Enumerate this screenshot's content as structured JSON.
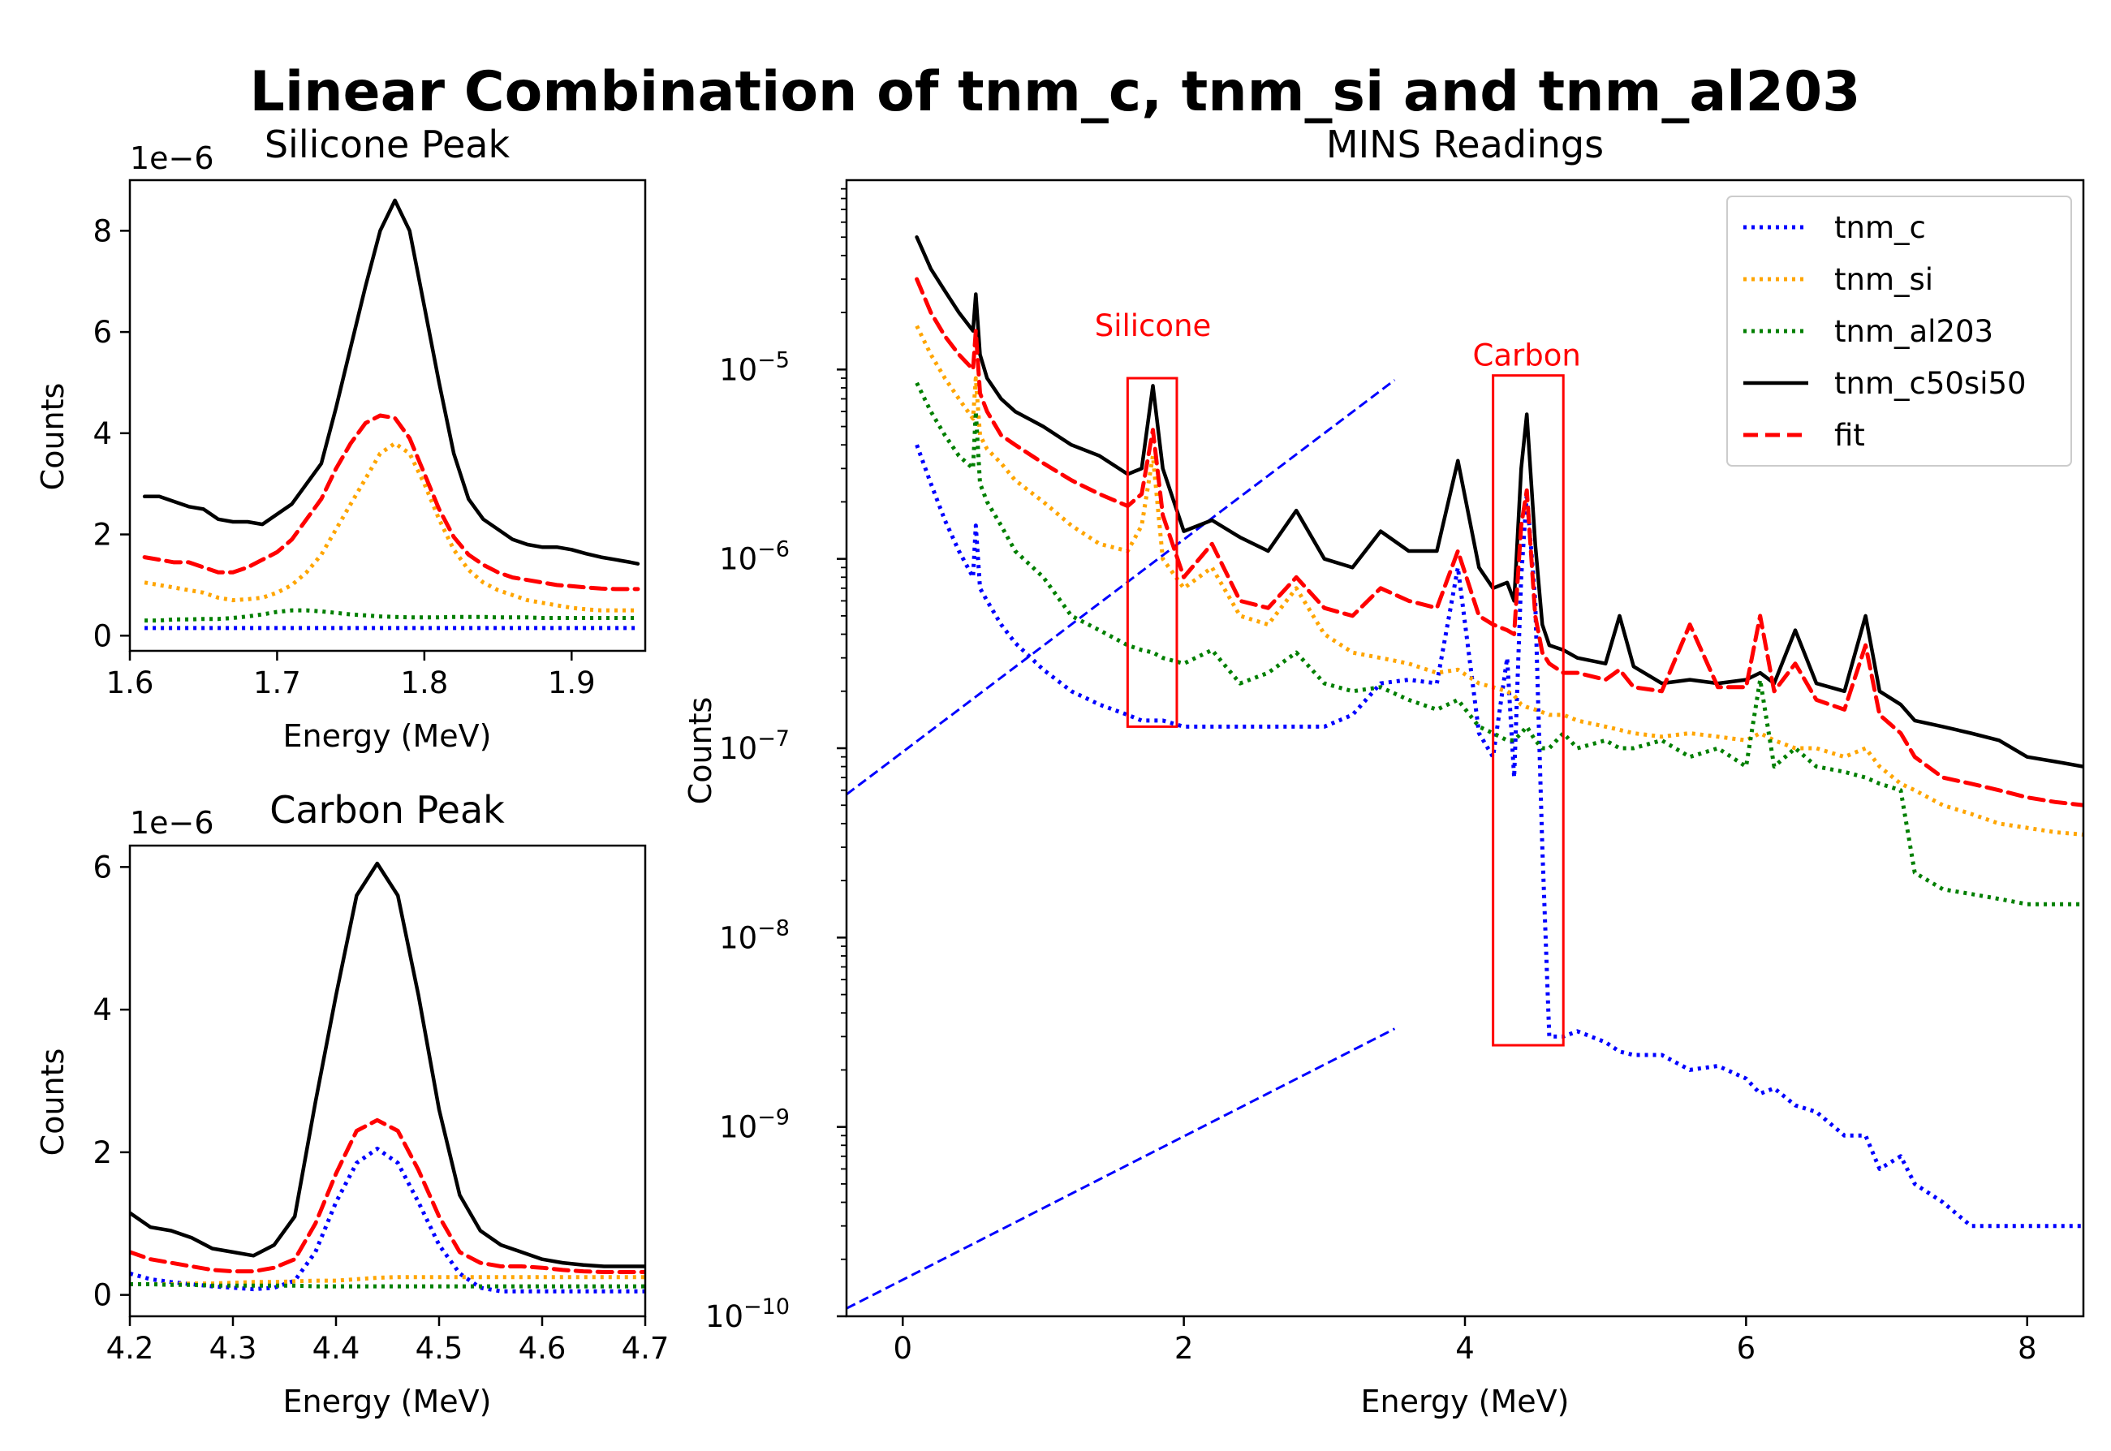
{
  "title": "Linear Combination of tnm_c, tnm_si and tnm_al203",
  "colors": {
    "tnm_c": "#0000ff",
    "tnm_si": "#ffa500",
    "tnm_al203": "#007f00",
    "tnm_c50si50": "#000000",
    "fit": "#ff0000",
    "annotation": "#ff0000",
    "guide": "#0000ff"
  },
  "chart_data": [
    {
      "id": "silicone",
      "type": "line",
      "title": "Silicone Peak",
      "xlabel": "Energy (MeV)",
      "ylabel": "Counts",
      "offset_label": "1e−6",
      "xlim": [
        1.6,
        1.95
      ],
      "ylim": [
        -0.3,
        9.0
      ],
      "xticks": [
        1.6,
        1.7,
        1.8,
        1.9
      ],
      "xtick_labels": [
        "1.6",
        "1.7",
        "1.8",
        "1.9"
      ],
      "yticks": [
        0,
        2,
        4,
        6,
        8
      ],
      "ytick_labels": [
        "0",
        "2",
        "4",
        "6",
        "8"
      ],
      "x": [
        1.61,
        1.62,
        1.63,
        1.64,
        1.65,
        1.66,
        1.67,
        1.68,
        1.69,
        1.7,
        1.71,
        1.72,
        1.73,
        1.74,
        1.75,
        1.76,
        1.77,
        1.78,
        1.79,
        1.8,
        1.81,
        1.82,
        1.83,
        1.84,
        1.85,
        1.86,
        1.87,
        1.88,
        1.89,
        1.9,
        1.91,
        1.92,
        1.93,
        1.94,
        1.945
      ],
      "series": [
        {
          "name": "tnm_c",
          "style": "dotted",
          "values": [
            0.15,
            0.15,
            0.15,
            0.15,
            0.15,
            0.15,
            0.15,
            0.15,
            0.15,
            0.15,
            0.15,
            0.15,
            0.15,
            0.15,
            0.15,
            0.15,
            0.15,
            0.15,
            0.15,
            0.15,
            0.15,
            0.15,
            0.15,
            0.15,
            0.15,
            0.15,
            0.15,
            0.15,
            0.15,
            0.15,
            0.15,
            0.15,
            0.15,
            0.15,
            0.15
          ]
        },
        {
          "name": "tnm_si",
          "style": "dotted",
          "values": [
            1.05,
            1.0,
            0.95,
            0.9,
            0.85,
            0.75,
            0.7,
            0.72,
            0.75,
            0.85,
            1.0,
            1.25,
            1.6,
            2.1,
            2.6,
            3.1,
            3.6,
            3.8,
            3.6,
            3.0,
            2.3,
            1.7,
            1.3,
            1.05,
            0.9,
            0.8,
            0.7,
            0.65,
            0.6,
            0.55,
            0.52,
            0.5,
            0.5,
            0.5,
            0.5
          ]
        },
        {
          "name": "tnm_al203",
          "style": "dotted",
          "values": [
            0.3,
            0.3,
            0.32,
            0.32,
            0.33,
            0.33,
            0.35,
            0.38,
            0.42,
            0.47,
            0.5,
            0.5,
            0.48,
            0.45,
            0.42,
            0.4,
            0.38,
            0.37,
            0.36,
            0.36,
            0.36,
            0.37,
            0.37,
            0.37,
            0.36,
            0.36,
            0.36,
            0.35,
            0.35,
            0.35,
            0.35,
            0.35,
            0.35,
            0.35,
            0.35
          ]
        },
        {
          "name": "tnm_c50si50",
          "style": "solid",
          "values": [
            2.75,
            2.75,
            2.65,
            2.55,
            2.5,
            2.3,
            2.25,
            2.25,
            2.2,
            2.4,
            2.6,
            3.0,
            3.4,
            4.5,
            5.7,
            6.9,
            8.0,
            8.6,
            8.0,
            6.5,
            5.0,
            3.6,
            2.7,
            2.3,
            2.1,
            1.9,
            1.8,
            1.75,
            1.75,
            1.7,
            1.62,
            1.55,
            1.5,
            1.45,
            1.42
          ]
        },
        {
          "name": "fit",
          "style": "dashed",
          "values": [
            1.55,
            1.5,
            1.45,
            1.45,
            1.35,
            1.25,
            1.25,
            1.35,
            1.5,
            1.65,
            1.9,
            2.3,
            2.7,
            3.3,
            3.8,
            4.2,
            4.35,
            4.3,
            3.9,
            3.2,
            2.5,
            1.95,
            1.6,
            1.4,
            1.25,
            1.15,
            1.1,
            1.05,
            1.0,
            0.98,
            0.95,
            0.93,
            0.92,
            0.92,
            0.92
          ]
        }
      ]
    },
    {
      "id": "carbon",
      "type": "line",
      "title": "Carbon Peak",
      "xlabel": "Energy (MeV)",
      "ylabel": "Counts",
      "offset_label": "1e−6",
      "xlim": [
        4.2,
        4.7
      ],
      "ylim": [
        -0.3,
        6.3
      ],
      "xticks": [
        4.2,
        4.3,
        4.4,
        4.5,
        4.6,
        4.7
      ],
      "xtick_labels": [
        "4.2",
        "4.3",
        "4.4",
        "4.5",
        "4.6",
        "4.7"
      ],
      "yticks": [
        0,
        2,
        4,
        6
      ],
      "ytick_labels": [
        "0",
        "2",
        "4",
        "6"
      ],
      "x": [
        4.2,
        4.22,
        4.24,
        4.26,
        4.28,
        4.3,
        4.32,
        4.34,
        4.36,
        4.38,
        4.4,
        4.42,
        4.44,
        4.46,
        4.48,
        4.5,
        4.52,
        4.54,
        4.56,
        4.58,
        4.6,
        4.62,
        4.64,
        4.66,
        4.68,
        4.7
      ],
      "series": [
        {
          "name": "tnm_c",
          "style": "dotted",
          "values": [
            0.3,
            0.22,
            0.18,
            0.15,
            0.12,
            0.1,
            0.08,
            0.1,
            0.2,
            0.6,
            1.3,
            1.85,
            2.05,
            1.85,
            1.3,
            0.7,
            0.3,
            0.1,
            0.05,
            0.05,
            0.05,
            0.05,
            0.05,
            0.05,
            0.05,
            0.05
          ]
        },
        {
          "name": "tnm_si",
          "style": "dotted",
          "values": [
            0.15,
            0.15,
            0.15,
            0.16,
            0.16,
            0.17,
            0.18,
            0.18,
            0.19,
            0.2,
            0.2,
            0.22,
            0.24,
            0.25,
            0.25,
            0.25,
            0.25,
            0.25,
            0.25,
            0.25,
            0.25,
            0.25,
            0.25,
            0.25,
            0.25,
            0.25
          ]
        },
        {
          "name": "tnm_al203",
          "style": "dotted",
          "values": [
            0.15,
            0.15,
            0.14,
            0.14,
            0.13,
            0.13,
            0.13,
            0.13,
            0.13,
            0.12,
            0.12,
            0.12,
            0.12,
            0.12,
            0.12,
            0.12,
            0.12,
            0.12,
            0.12,
            0.12,
            0.12,
            0.12,
            0.12,
            0.12,
            0.12,
            0.12
          ]
        },
        {
          "name": "tnm_c50si50",
          "style": "solid",
          "values": [
            1.15,
            0.95,
            0.9,
            0.8,
            0.65,
            0.6,
            0.55,
            0.7,
            1.1,
            2.7,
            4.2,
            5.6,
            6.05,
            5.6,
            4.2,
            2.6,
            1.4,
            0.9,
            0.7,
            0.6,
            0.5,
            0.45,
            0.42,
            0.4,
            0.4,
            0.4
          ]
        },
        {
          "name": "fit",
          "style": "dashed",
          "values": [
            0.6,
            0.5,
            0.45,
            0.4,
            0.35,
            0.33,
            0.33,
            0.38,
            0.5,
            1.0,
            1.7,
            2.3,
            2.45,
            2.3,
            1.75,
            1.1,
            0.6,
            0.45,
            0.4,
            0.4,
            0.38,
            0.35,
            0.33,
            0.32,
            0.32,
            0.32
          ]
        }
      ]
    },
    {
      "id": "mins",
      "type": "line",
      "title": "MINS Readings",
      "xlabel": "Energy (MeV)",
      "ylabel": "Counts",
      "yscale": "log",
      "xlim": [
        -0.4,
        8.4
      ],
      "ylim": [
        1e-10,
        0.0001
      ],
      "xticks": [
        0,
        2,
        4,
        6,
        8
      ],
      "xtick_labels": [
        "0",
        "2",
        "4",
        "6",
        "8"
      ],
      "yticks": [
        1e-10,
        1e-09,
        1e-08,
        1e-07,
        1e-06,
        1e-05
      ],
      "ytick_labels": [
        "10",
        "10",
        "10",
        "10",
        "10",
        "10"
      ],
      "ytick_exponents": [
        "−10",
        "−9",
        "−8",
        "−7",
        "−6",
        "−5"
      ],
      "legend": {
        "position": "top-right",
        "entries": [
          {
            "label": "tnm_c",
            "style": "dotted",
            "color_key": "tnm_c"
          },
          {
            "label": "tnm_si",
            "style": "dotted",
            "color_key": "tnm_si"
          },
          {
            "label": "tnm_al203",
            "style": "dotted",
            "color_key": "tnm_al203"
          },
          {
            "label": "tnm_c50si50",
            "style": "solid",
            "color_key": "tnm_c50si50"
          },
          {
            "label": "fit",
            "style": "dashed",
            "color_key": "fit"
          }
        ]
      },
      "annotations": [
        {
          "text": "Silicone",
          "x": 1.78,
          "y": 1.5e-05
        },
        {
          "text": "Carbon",
          "x": 4.44,
          "y": 1.05e-05
        }
      ],
      "regions": [
        {
          "label": "Silicone",
          "x0": 1.6,
          "x1": 1.95,
          "y0": 1.3e-07,
          "y1": 9e-06
        },
        {
          "label": "Carbon",
          "x0": 4.2,
          "x1": 4.7,
          "y0": 2.7e-09,
          "y1": 9.3e-06
        }
      ],
      "guides": [
        {
          "x0": -0.4,
          "y0": 5.7e-08,
          "x1": 3.5,
          "y1": 8.8e-06
        },
        {
          "x0": -0.4,
          "y0": 1.1e-10,
          "x1": 3.5,
          "y1": 3.3e-09
        }
      ],
      "x": [
        0.1,
        0.2,
        0.3,
        0.4,
        0.5,
        0.52,
        0.55,
        0.6,
        0.7,
        0.8,
        1.0,
        1.2,
        1.4,
        1.6,
        1.7,
        1.78,
        1.85,
        2.0,
        2.2,
        2.4,
        2.6,
        2.8,
        3.0,
        3.2,
        3.4,
        3.6,
        3.8,
        3.95,
        4.1,
        4.2,
        4.3,
        4.35,
        4.4,
        4.44,
        4.5,
        4.55,
        4.6,
        4.7,
        4.8,
        5.0,
        5.1,
        5.2,
        5.4,
        5.6,
        5.8,
        6.0,
        6.1,
        6.2,
        6.35,
        6.5,
        6.7,
        6.85,
        6.95,
        7.1,
        7.2,
        7.4,
        7.6,
        7.8,
        8.0,
        8.2,
        8.4
      ],
      "series": [
        {
          "name": "tnm_c",
          "style": "dotted",
          "values": [
            4e-06,
            2.5e-06,
            1.6e-06,
            1.1e-06,
            8e-07,
            1.5e-06,
            7e-07,
            6e-07,
            4.5e-07,
            3.6e-07,
            2.6e-07,
            2e-07,
            1.7e-07,
            1.5e-07,
            1.4e-07,
            1.4e-07,
            1.4e-07,
            1.3e-07,
            1.3e-07,
            1.3e-07,
            1.3e-07,
            1.3e-07,
            1.3e-07,
            1.5e-07,
            2.2e-07,
            2.3e-07,
            2.2e-07,
            9e-07,
            1.2e-07,
            9e-08,
            3e-07,
            7e-08,
            8e-07,
            2.2e-06,
            6e-07,
            3e-08,
            3e-09,
            3e-09,
            3.2e-09,
            2.8e-09,
            2.5e-09,
            2.4e-09,
            2.4e-09,
            2e-09,
            2.1e-09,
            1.8e-09,
            1.5e-09,
            1.6e-09,
            1.3e-09,
            1.2e-09,
            9e-10,
            9e-10,
            6e-10,
            7e-10,
            5e-10,
            4e-10,
            3e-10,
            3e-10,
            3e-10,
            3e-10,
            3e-10
          ]
        },
        {
          "name": "tnm_si",
          "style": "dotted",
          "values": [
            1.7e-05,
            1.2e-05,
            9e-06,
            7e-06,
            5.5e-06,
            9e-06,
            4.5e-06,
            3.8e-06,
            3.2e-06,
            2.6e-06,
            2e-06,
            1.5e-06,
            1.2e-06,
            1.1e-06,
            1.5e-06,
            3.5e-06,
            1e-06,
            7e-07,
            9e-07,
            5e-07,
            4.5e-07,
            7e-07,
            4e-07,
            3.2e-07,
            3e-07,
            2.8e-07,
            2.5e-07,
            2.6e-07,
            2.2e-07,
            2.1e-07,
            2e-07,
            1.9e-07,
            1.7e-07,
            1.65e-07,
            1.6e-07,
            1.55e-07,
            1.5e-07,
            1.5e-07,
            1.4e-07,
            1.3e-07,
            1.25e-07,
            1.2e-07,
            1.15e-07,
            1.2e-07,
            1.15e-07,
            1.1e-07,
            1.2e-07,
            1.1e-07,
            1e-07,
            1e-07,
            9e-08,
            1e-07,
            8e-08,
            6.5e-08,
            6e-08,
            5e-08,
            4.5e-08,
            4e-08,
            3.8e-08,
            3.6e-08,
            3.5e-08
          ]
        },
        {
          "name": "tnm_al203",
          "style": "dotted",
          "values": [
            8.5e-06,
            6e-06,
            4.5e-06,
            3.5e-06,
            3e-06,
            6e-06,
            2.5e-06,
            2e-06,
            1.5e-06,
            1.1e-06,
            8e-07,
            5e-07,
            4.2e-07,
            3.5e-07,
            3.3e-07,
            3.2e-07,
            3e-07,
            2.8e-07,
            3.3e-07,
            2.2e-07,
            2.5e-07,
            3.2e-07,
            2.2e-07,
            2e-07,
            2.1e-07,
            1.8e-07,
            1.6e-07,
            1.8e-07,
            1.3e-07,
            1.2e-07,
            1.1e-07,
            1.1e-07,
            1.2e-07,
            1.3e-07,
            1.1e-07,
            1e-07,
            1e-07,
            1.2e-07,
            1e-07,
            1.1e-07,
            1e-07,
            1e-07,
            1.1e-07,
            9e-08,
            1e-07,
            8e-08,
            2.3e-07,
            8e-08,
            1e-07,
            8e-08,
            7.5e-08,
            7e-08,
            6.5e-08,
            6e-08,
            2.2e-08,
            1.8e-08,
            1.7e-08,
            1.6e-08,
            1.5e-08,
            1.5e-08,
            1.5e-08
          ]
        },
        {
          "name": "tnm_c50si50",
          "style": "solid",
          "values": [
            5e-05,
            3.4e-05,
            2.6e-05,
            2e-05,
            1.6e-05,
            2.5e-05,
            1.2e-05,
            9e-06,
            7e-06,
            6e-06,
            5e-06,
            4e-06,
            3.5e-06,
            2.8e-06,
            3e-06,
            8.2e-06,
            3e-06,
            1.4e-06,
            1.6e-06,
            1.3e-06,
            1.1e-06,
            1.8e-06,
            1e-06,
            9e-07,
            1.4e-06,
            1.1e-06,
            1.1e-06,
            3.3e-06,
            9e-07,
            7e-07,
            7.5e-07,
            6e-07,
            3e-06,
            5.8e-06,
            1.2e-06,
            4.5e-07,
            3.5e-07,
            3.3e-07,
            3e-07,
            2.8e-07,
            5e-07,
            2.7e-07,
            2.2e-07,
            2.3e-07,
            2.2e-07,
            2.3e-07,
            2.5e-07,
            2.2e-07,
            4.2e-07,
            2.2e-07,
            2e-07,
            5e-07,
            2e-07,
            1.7e-07,
            1.4e-07,
            1.3e-07,
            1.2e-07,
            1.1e-07,
            9e-08,
            8.5e-08,
            8e-08
          ]
        },
        {
          "name": "fit",
          "style": "dashed",
          "values": [
            3e-05,
            2e-05,
            1.5e-05,
            1.2e-05,
            1e-05,
            1.6e-05,
            7.5e-06,
            6e-06,
            4.5e-06,
            4e-06,
            3.2e-06,
            2.6e-06,
            2.2e-06,
            1.9e-06,
            2.2e-06,
            4.8e-06,
            1.7e-06,
            8e-07,
            1.2e-06,
            6e-07,
            5.5e-07,
            8e-07,
            5.5e-07,
            5e-07,
            7e-07,
            6e-07,
            5.5e-07,
            1.1e-06,
            5e-07,
            4.5e-07,
            4.2e-07,
            4e-07,
            1.5e-06,
            2.3e-06,
            5e-07,
            3.2e-07,
            2.8e-07,
            2.5e-07,
            2.5e-07,
            2.3e-07,
            2.6e-07,
            2.1e-07,
            2e-07,
            4.5e-07,
            2.1e-07,
            2.1e-07,
            5e-07,
            2e-07,
            2.8e-07,
            1.8e-07,
            1.6e-07,
            3.5e-07,
            1.5e-07,
            1.2e-07,
            9e-08,
            7e-08,
            6.5e-08,
            6e-08,
            5.5e-08,
            5.2e-08,
            5e-08
          ]
        }
      ]
    }
  ]
}
